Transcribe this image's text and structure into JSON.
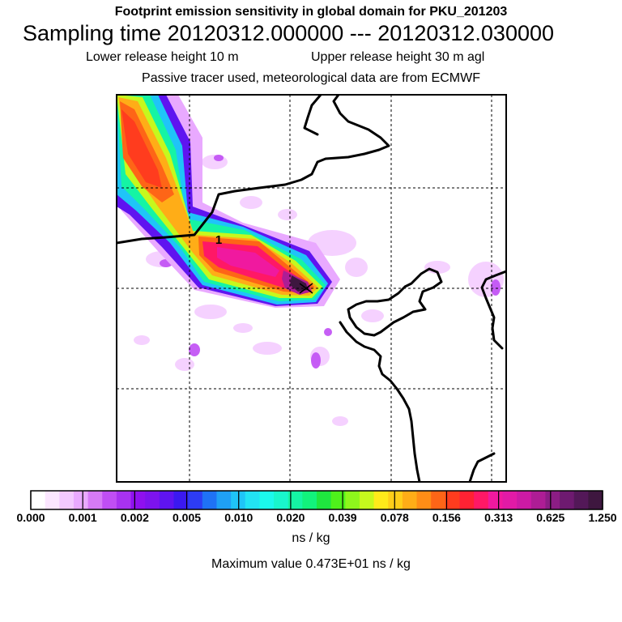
{
  "header": {
    "title": "Footprint emission sensitivity in global domain for PKU_201203",
    "sampling": "Sampling time   20120312.000000 --- 20120312.030000",
    "release_lower": "Lower release height   10 m",
    "release_upper": "Upper release height   30 m    agl",
    "tracer_info": "Passive tracer used, meteorological data are from ECMWF"
  },
  "map": {
    "station_marker": "1",
    "field_description": "Plume of footprint emission sensitivity extending from the upper-left corner toward the receptor station near the centre of the domain",
    "coastline_color": "#000000",
    "gridline_color": "#000000"
  },
  "colorbar": {
    "tick_labels": [
      "0.000",
      "0.001",
      "0.002",
      "0.005",
      "0.010",
      "0.020",
      "0.039",
      "0.078",
      "0.156",
      "0.313",
      "0.625",
      "1.250"
    ],
    "colors": [
      "#ffffff",
      "#fbe6ff",
      "#f3c9ff",
      "#e9a9ff",
      "#d67af6",
      "#c04ef4",
      "#a832f0",
      "#8f10ef",
      "#7d13ee",
      "#5f14f0",
      "#3b19f0",
      "#2d3cf4",
      "#1f72f6",
      "#1fa0f6",
      "#1fc4f8",
      "#22e3f4",
      "#1bf8ec",
      "#19f6cc",
      "#15f4a4",
      "#12f27c",
      "#1fe63f",
      "#4ff11b",
      "#8ef61c",
      "#c6f81d",
      "#ffea1a",
      "#ffce19",
      "#ffad17",
      "#ff8d16",
      "#fe6517",
      "#ff3c1e",
      "#ff2233",
      "#ff1866",
      "#f0199f",
      "#e21aa6",
      "#cc1aa5",
      "#ae1d95",
      "#8c1d85",
      "#6e1a70",
      "#531858",
      "#3e173f"
    ],
    "units": "ns / kg"
  },
  "footer": {
    "max_value": "Maximum value  0.473E+01 ns / kg"
  }
}
